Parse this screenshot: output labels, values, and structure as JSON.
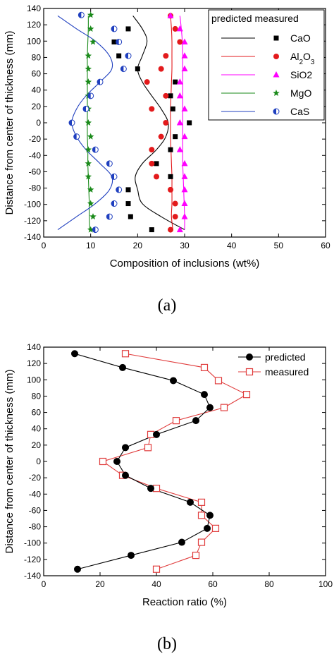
{
  "chart_data": [
    {
      "type": "scatter",
      "panel_label": "(a)",
      "xlabel": "Composition of inclusions (wt%)",
      "ylabel": "Distance from center of thickness (mm)",
      "xlim": [
        0,
        60
      ],
      "ylim": [
        -140,
        140
      ],
      "xticks": [
        0,
        10,
        20,
        30,
        40,
        50,
        60
      ],
      "yticks": [
        -140,
        -120,
        -100,
        -80,
        -60,
        -40,
        -20,
        0,
        20,
        40,
        60,
        80,
        100,
        120,
        140
      ],
      "legend_header": "predicted measured",
      "legend_position": "top-right",
      "series": [
        {
          "name": "CaO",
          "color": "#000000",
          "marker": "square",
          "predicted": [
            [
              19,
              131
            ],
            [
              21,
              115
            ],
            [
              22,
              100
            ],
            [
              21,
              82
            ],
            [
              20,
              66
            ],
            [
              21,
              50
            ],
            [
              23,
              33
            ],
            [
              25,
              17
            ],
            [
              26.5,
              0
            ],
            [
              26,
              -17
            ],
            [
              24,
              -33
            ],
            [
              21,
              -50
            ],
            [
              19.5,
              -66
            ],
            [
              20,
              -82
            ],
            [
              21,
              -99
            ],
            [
              25,
              -115
            ],
            [
              30,
              -131
            ]
          ],
          "measured": [
            [
              18,
              115
            ],
            [
              15,
              99
            ],
            [
              16,
              82
            ],
            [
              20,
              66
            ],
            [
              28,
              50
            ],
            [
              27,
              33
            ],
            [
              27.5,
              17
            ],
            [
              31,
              0
            ],
            [
              28,
              -17
            ],
            [
              27,
              -33
            ],
            [
              24,
              -50
            ],
            [
              27,
              -66
            ],
            [
              18,
              -82
            ],
            [
              18,
              -99
            ],
            [
              18.5,
              -115
            ],
            [
              23,
              -131
            ]
          ]
        },
        {
          "name": "Al2O3",
          "color": "#e31a1c",
          "marker": "circle",
          "predicted": [
            [
              27,
              131
            ],
            [
              27.2,
              115
            ],
            [
              27.3,
              100
            ],
            [
              27.3,
              82
            ],
            [
              27.3,
              66
            ],
            [
              27.2,
              50
            ],
            [
              27.1,
              33
            ],
            [
              27,
              17
            ],
            [
              27,
              0
            ],
            [
              27,
              -17
            ],
            [
              27.1,
              -33
            ],
            [
              27.2,
              -50
            ],
            [
              27.3,
              -66
            ],
            [
              27.3,
              -82
            ],
            [
              27.3,
              -99
            ],
            [
              27.2,
              -115
            ],
            [
              27.5,
              -131
            ]
          ],
          "measured": [
            [
              27,
              131
            ],
            [
              28,
              115
            ],
            [
              29,
              99
            ],
            [
              26,
              82
            ],
            [
              25,
              66
            ],
            [
              22,
              50
            ],
            [
              26,
              33
            ],
            [
              23,
              17
            ],
            [
              26,
              0
            ],
            [
              25,
              -17
            ],
            [
              23,
              -33
            ],
            [
              23,
              -50
            ],
            [
              24,
              -66
            ],
            [
              27,
              -82
            ],
            [
              28,
              -99
            ],
            [
              28,
              -115
            ],
            [
              27,
              -131
            ]
          ]
        },
        {
          "name": "SiO2",
          "color": "#ff00ff",
          "marker": "triangle",
          "predicted": [
            [
              29,
              131
            ],
            [
              29.3,
              115
            ],
            [
              29.5,
              100
            ],
            [
              29.6,
              82
            ],
            [
              29.6,
              66
            ],
            [
              29.6,
              50
            ],
            [
              29.6,
              33
            ],
            [
              29.6,
              17
            ],
            [
              29.6,
              0
            ],
            [
              29.6,
              -17
            ],
            [
              29.6,
              -33
            ],
            [
              29.6,
              -50
            ],
            [
              29.7,
              -66
            ],
            [
              29.8,
              -82
            ],
            [
              29.9,
              -99
            ],
            [
              30,
              -115
            ],
            [
              30,
              -131
            ]
          ],
          "measured": [
            [
              27,
              131
            ],
            [
              29,
              115
            ],
            [
              30,
              99
            ],
            [
              30,
              82
            ],
            [
              30,
              66
            ],
            [
              29,
              50
            ],
            [
              29,
              33
            ],
            [
              30,
              17
            ],
            [
              29,
              0
            ],
            [
              30,
              -17
            ],
            [
              29,
              -33
            ],
            [
              30,
              -50
            ],
            [
              30,
              -66
            ],
            [
              30,
              -82
            ],
            [
              30,
              -99
            ],
            [
              30,
              -115
            ],
            [
              29,
              -131
            ]
          ]
        },
        {
          "name": "MgO",
          "color": "#1a8a1a",
          "marker": "star",
          "predicted": [
            [
              9.5,
              131
            ],
            [
              9.5,
              115
            ],
            [
              9.4,
              100
            ],
            [
              9.3,
              82
            ],
            [
              9.3,
              66
            ],
            [
              9.3,
              50
            ],
            [
              9.3,
              33
            ],
            [
              9.3,
              17
            ],
            [
              9.3,
              0
            ],
            [
              9.3,
              -17
            ],
            [
              9.4,
              -33
            ],
            [
              9.4,
              -50
            ],
            [
              9.5,
              -66
            ],
            [
              9.6,
              -82
            ],
            [
              9.7,
              -99
            ],
            [
              9.7,
              -115
            ],
            [
              9.8,
              -131
            ]
          ],
          "measured": [
            [
              10,
              132
            ],
            [
              10,
              115
            ],
            [
              10.5,
              99
            ],
            [
              9.5,
              82
            ],
            [
              9.5,
              66
            ],
            [
              9.5,
              50
            ],
            [
              9.5,
              33
            ],
            [
              9.5,
              17
            ],
            [
              9.5,
              0
            ],
            [
              10,
              -17
            ],
            [
              9.5,
              -33
            ],
            [
              9.5,
              -50
            ],
            [
              9.5,
              -66
            ],
            [
              10,
              -82
            ],
            [
              10,
              -99
            ],
            [
              10.5,
              -115
            ],
            [
              10,
              -131
            ]
          ]
        },
        {
          "name": "CaS",
          "color": "#1f3fbf",
          "marker": "half-circle",
          "predicted": [
            [
              3,
              131
            ],
            [
              7,
              115
            ],
            [
              11,
              100
            ],
            [
              14,
              82
            ],
            [
              14.5,
              66
            ],
            [
              12,
              50
            ],
            [
              9,
              33
            ],
            [
              7,
              17
            ],
            [
              6,
              0
            ],
            [
              7,
              -17
            ],
            [
              9,
              -33
            ],
            [
              12,
              -50
            ],
            [
              14.5,
              -66
            ],
            [
              14,
              -82
            ],
            [
              11,
              -99
            ],
            [
              7,
              -115
            ],
            [
              3,
              -131
            ]
          ],
          "measured": [
            [
              8,
              132
            ],
            [
              15,
              115
            ],
            [
              16,
              99
            ],
            [
              18,
              82
            ],
            [
              17,
              66
            ],
            [
              12,
              50
            ],
            [
              10,
              33
            ],
            [
              9,
              17
            ],
            [
              6,
              0
            ],
            [
              7,
              -17
            ],
            [
              11,
              -33
            ],
            [
              14,
              -50
            ],
            [
              15,
              -66
            ],
            [
              16,
              -82
            ],
            [
              15,
              -99
            ],
            [
              14,
              -115
            ],
            [
              11,
              -131
            ]
          ]
        }
      ]
    },
    {
      "type": "line",
      "panel_label": "(b)",
      "xlabel": "Reaction ratio (%)",
      "ylabel": "Distance from center of thickness (mm)",
      "xlim": [
        0,
        100
      ],
      "ylim": [
        -140,
        140
      ],
      "xticks": [
        0,
        20,
        40,
        60,
        80,
        100
      ],
      "yticks": [
        -140,
        -120,
        -100,
        -80,
        -60,
        -40,
        -20,
        0,
        20,
        40,
        60,
        80,
        100,
        120,
        140
      ],
      "legend_position": "top-right",
      "series": [
        {
          "name": "predicted",
          "color": "#000000",
          "marker": "filled-circle",
          "points": [
            [
              11,
              132
            ],
            [
              28,
              115
            ],
            [
              46,
              99
            ],
            [
              57,
              82
            ],
            [
              59,
              66
            ],
            [
              54,
              50
            ],
            [
              40,
              33
            ],
            [
              29,
              17
            ],
            [
              26,
              0
            ],
            [
              29,
              -17
            ],
            [
              38,
              -33
            ],
            [
              52,
              -50
            ],
            [
              59,
              -66
            ],
            [
              58,
              -82
            ],
            [
              49,
              -99
            ],
            [
              31,
              -115
            ],
            [
              12,
              -132
            ]
          ]
        },
        {
          "name": "measured",
          "color": "#e03c3c",
          "marker": "open-square",
          "points": [
            [
              29,
              132
            ],
            [
              57,
              115
            ],
            [
              62,
              99
            ],
            [
              72,
              82
            ],
            [
              64,
              66
            ],
            [
              47,
              50
            ],
            [
              38,
              33
            ],
            [
              37,
              17
            ],
            [
              21,
              0
            ],
            [
              28,
              -17
            ],
            [
              40,
              -33
            ],
            [
              56,
              -50
            ],
            [
              56,
              -66
            ],
            [
              61,
              -82
            ],
            [
              56,
              -99
            ],
            [
              54,
              -115
            ],
            [
              40,
              -132
            ]
          ]
        }
      ]
    }
  ]
}
